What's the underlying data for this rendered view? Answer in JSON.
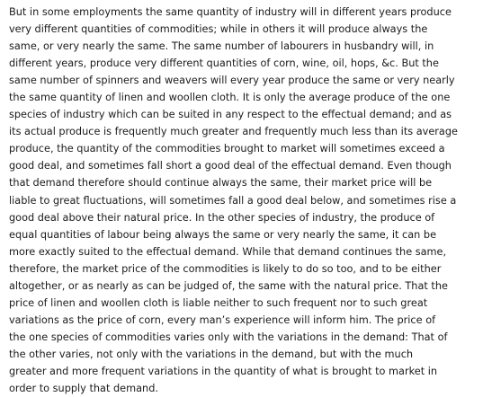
{
  "document": {
    "paragraph_lines": [
      "But in some employments the same quantity of industry will in different years produce",
      "very different quantities of commodities; while in others it will produce always the",
      "same, or very nearly the same. The same number of labourers in husbandry will, in",
      "different years, produce very different quantities of corn, wine, oil, hops, &c. But the",
      "same number of spinners and weavers will every year produce the same or very nearly",
      "the same quantity of linen and woollen cloth. It is only the average produce of the one",
      "species of industry which can be suited in any respect to the effectual demand; and as",
      "its actual produce is frequently much greater and frequently much less than its average",
      "produce, the quantity of the commodities brought to market will sometimes exceed a",
      "good deal, and sometimes fall short a good deal of the effectual demand. Even though",
      "that demand therefore should continue always the same, their market price will be",
      "liable to great fluctuations, will sometimes fall a good deal below, and sometimes rise a",
      "good deal above their natural price. In the other species of industry, the produce of",
      "equal quantities of labour being always the same or very nearly the same, it can be",
      "more exactly suited to the effectual demand. While that demand continues the same,",
      "therefore, the market price of the commodities is likely to do so too, and to be either",
      "altogether, or as nearly as can be judged of, the same with the natural price. That the",
      "price of linen and woollen cloth is liable neither to such frequent nor to such great",
      "variations as the price of corn, every man’s experience will inform him. The price of",
      "the one species of commodities varies only with the variations in the demand: That of",
      "the other varies, not only with the variations in the demand, but with the much",
      "greater and more frequent variations in the quantity of what is brought to market in",
      "order to supply that demand."
    ]
  }
}
